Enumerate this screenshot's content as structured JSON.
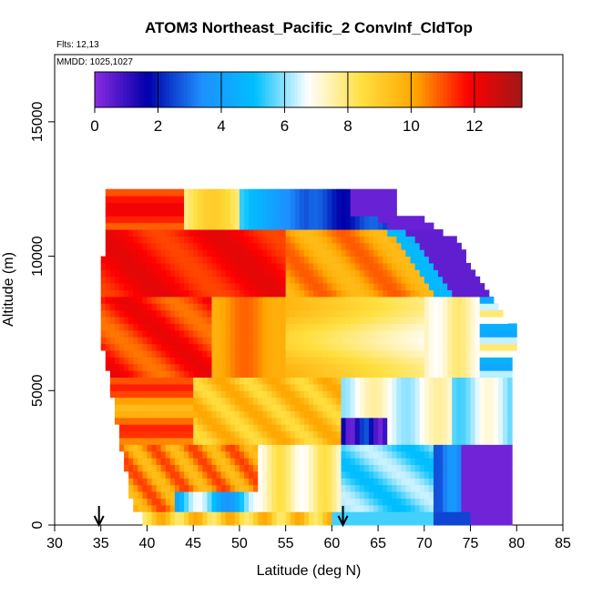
{
  "chart_data": {
    "type": "heatmap",
    "title": "ATOM3 Northeast_Pacific_2 ConvInf_CldTop",
    "annotations": [
      "Flts: 12,13",
      "MMDD: 1025,1027"
    ],
    "xlabel": "Latitude (deg N)",
    "ylabel": "Altitude (m)",
    "xlim": [
      30,
      85
    ],
    "ylim": [
      0,
      17500
    ],
    "x_ticks": [
      30,
      35,
      40,
      45,
      50,
      55,
      60,
      65,
      70,
      75,
      80,
      85
    ],
    "y_ticks": [
      0,
      5000,
      10000,
      15000
    ],
    "colorbar": {
      "range": [
        0,
        13.5
      ],
      "ticks": [
        0,
        2,
        4,
        6,
        8,
        10,
        12
      ],
      "colors": [
        "#8a2be2",
        "#0000aa",
        "#1e8fff",
        "#00bfff",
        "#ffffff",
        "#ffe040",
        "#ffa500",
        "#ff0000",
        "#a01818"
      ]
    },
    "arrow_markers_x": [
      34.8,
      61.2
    ],
    "grid": false
  }
}
